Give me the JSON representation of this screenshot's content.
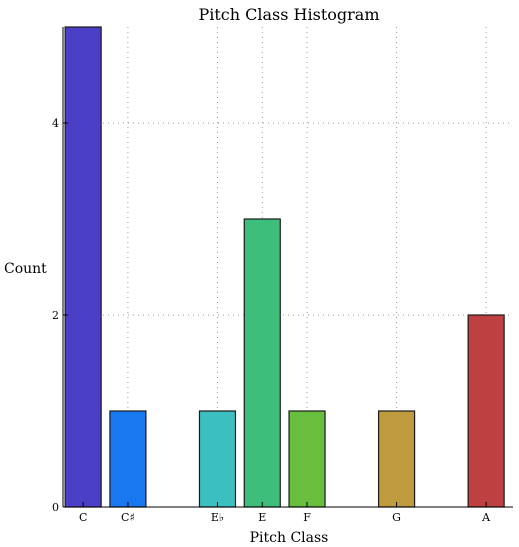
{
  "chart_data": {
    "type": "bar",
    "title": "Pitch Class Histogram",
    "xlabel": "Pitch Class",
    "ylabel": "Count",
    "ylim": [
      0,
      5
    ],
    "yticks": [
      0,
      2,
      4
    ],
    "grid": true,
    "categories": [
      "C",
      "C♯",
      "E♭",
      "E",
      "F",
      "G",
      "A"
    ],
    "x": [
      0,
      1,
      3,
      4,
      5,
      7,
      9
    ],
    "xlim": [
      -0.45,
      9.6
    ],
    "values": [
      5,
      1,
      1,
      3,
      1,
      1,
      2
    ],
    "colors": [
      "#4b3fc7",
      "#1878f0",
      "#3cbfbf",
      "#3dbf7b",
      "#67bf3d",
      "#bf9b3d",
      "#bf4040"
    ]
  }
}
